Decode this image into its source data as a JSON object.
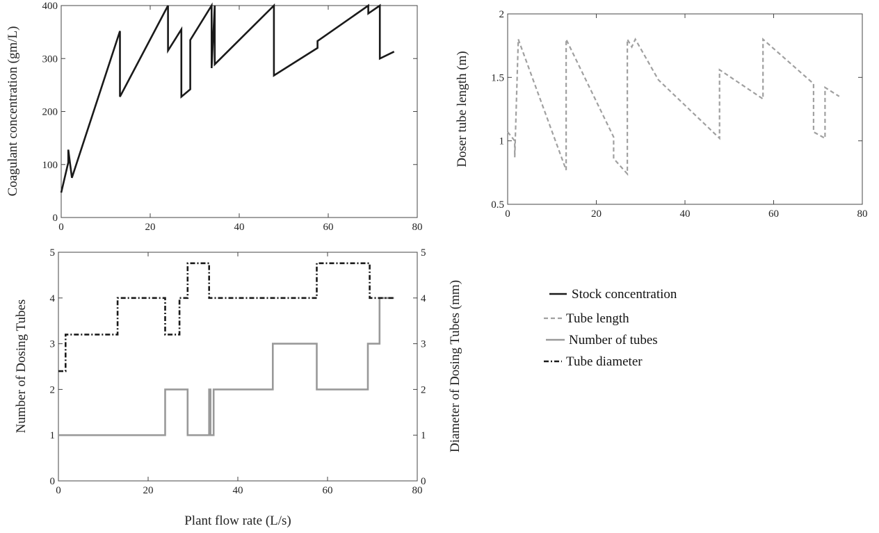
{
  "chart_data": [
    {
      "type": "line",
      "ylabel": "Coagulant concentration (gm/L)",
      "xlim": [
        0,
        80
      ],
      "ylim": [
        0,
        400
      ],
      "xticks": [
        "0",
        "20",
        "40",
        "60",
        "80"
      ],
      "yticks": [
        "0",
        "100",
        "200",
        "300",
        "400"
      ],
      "series": [
        {
          "name": "Stock concentration",
          "color": "#1a1a1a",
          "style": "solid",
          "x": [
            0,
            1.6,
            1.6,
            2.4,
            2.4,
            13.2,
            13.2,
            24.0,
            24.0,
            27.0,
            27.0,
            29.0,
            29.0,
            33.8,
            33.8,
            34.5,
            34.5,
            47.8,
            47.8,
            57.6,
            57.6,
            69.0,
            69.0,
            71.6,
            71.6,
            74.8
          ],
          "y": [
            47,
            104,
            128,
            75,
            75,
            352,
            228,
            400,
            315,
            355,
            228,
            242,
            335,
            400,
            282,
            400,
            289,
            400,
            268,
            320,
            333,
            400,
            385,
            400,
            300,
            313
          ]
        }
      ]
    },
    {
      "type": "line",
      "ylabel": "Doser tube length (m)",
      "xlim": [
        0,
        80
      ],
      "ylim": [
        0.5,
        2
      ],
      "xticks": [
        "0",
        "20",
        "40",
        "60",
        "80"
      ],
      "yticks": [
        "0.5",
        "1",
        "1.5",
        "2"
      ],
      "series": [
        {
          "name": "Tube length",
          "color": "#a0a0a0",
          "style": "dashed",
          "x": [
            0,
            1.6,
            1.6,
            2.4,
            2.4,
            13.2,
            13.2,
            23.9,
            23.9,
            27.0,
            27.0,
            28.0,
            28.8,
            34.0,
            47.8,
            47.8,
            57.6,
            57.6,
            69.0,
            69.0,
            71.6,
            71.6,
            74.8
          ],
          "y": [
            1.07,
            1.0,
            0.87,
            1.8,
            1.8,
            0.77,
            1.8,
            1.03,
            0.86,
            0.74,
            1.8,
            1.74,
            1.8,
            1.48,
            1.02,
            1.56,
            1.33,
            1.8,
            1.45,
            1.07,
            1.02,
            1.42,
            1.35
          ]
        }
      ]
    },
    {
      "type": "line",
      "xlabel": "Plant flow rate (L/s)",
      "ylabel": "Number of Dosing Tubes",
      "y2label": "Diameter of Dosing Tubes (mm)",
      "xlim": [
        0,
        80
      ],
      "ylim": [
        0,
        5
      ],
      "y2lim": [
        0,
        5
      ],
      "xticks": [
        "0",
        "20",
        "40",
        "60",
        "80"
      ],
      "yticks": [
        "0",
        "1",
        "2",
        "3",
        "4",
        "5"
      ],
      "y2ticks": [
        "0",
        "1",
        "2",
        "3",
        "4",
        "5"
      ],
      "series": [
        {
          "name": "Number of tubes",
          "color": "#999999",
          "style": "solid",
          "x": [
            0,
            23.8,
            23.8,
            28.8,
            28.8,
            33.6,
            33.6,
            33.9,
            33.9,
            34.6,
            34.6,
            47.8,
            47.8,
            57.6,
            57.6,
            69.0,
            69.0,
            71.6,
            71.6,
            74.8
          ],
          "y": [
            1,
            1,
            2,
            2,
            1,
            1,
            2,
            2,
            1,
            1,
            2,
            2,
            3,
            3,
            2,
            2,
            3,
            3,
            4,
            4
          ]
        },
        {
          "name": "Tube diameter",
          "color": "#1a1a1a",
          "style": "dashdot",
          "x": [
            0,
            1.6,
            1.6,
            13.2,
            13.2,
            23.8,
            23.8,
            27.0,
            27.0,
            28.8,
            28.8,
            33.6,
            33.6,
            34.0,
            34.0,
            57.6,
            57.6,
            69.4,
            69.4,
            74.8
          ],
          "y": [
            2.4,
            2.4,
            3.2,
            3.2,
            4.0,
            4.0,
            3.2,
            3.2,
            4.0,
            4.0,
            4.76,
            4.76,
            4.0,
            4.0,
            4.0,
            4.0,
            4.76,
            4.76,
            4.0,
            4.0
          ]
        }
      ]
    }
  ],
  "legend": {
    "items": [
      {
        "label": "Stock concentration",
        "color": "#1a1a1a",
        "style": "solid"
      },
      {
        "label": "Tube length",
        "color": "#a0a0a0",
        "style": "dashed"
      },
      {
        "label": "Number of tubes",
        "color": "#999999",
        "style": "solid"
      },
      {
        "label": "Tube diameter",
        "color": "#1a1a1a",
        "style": "dashdot"
      }
    ]
  }
}
